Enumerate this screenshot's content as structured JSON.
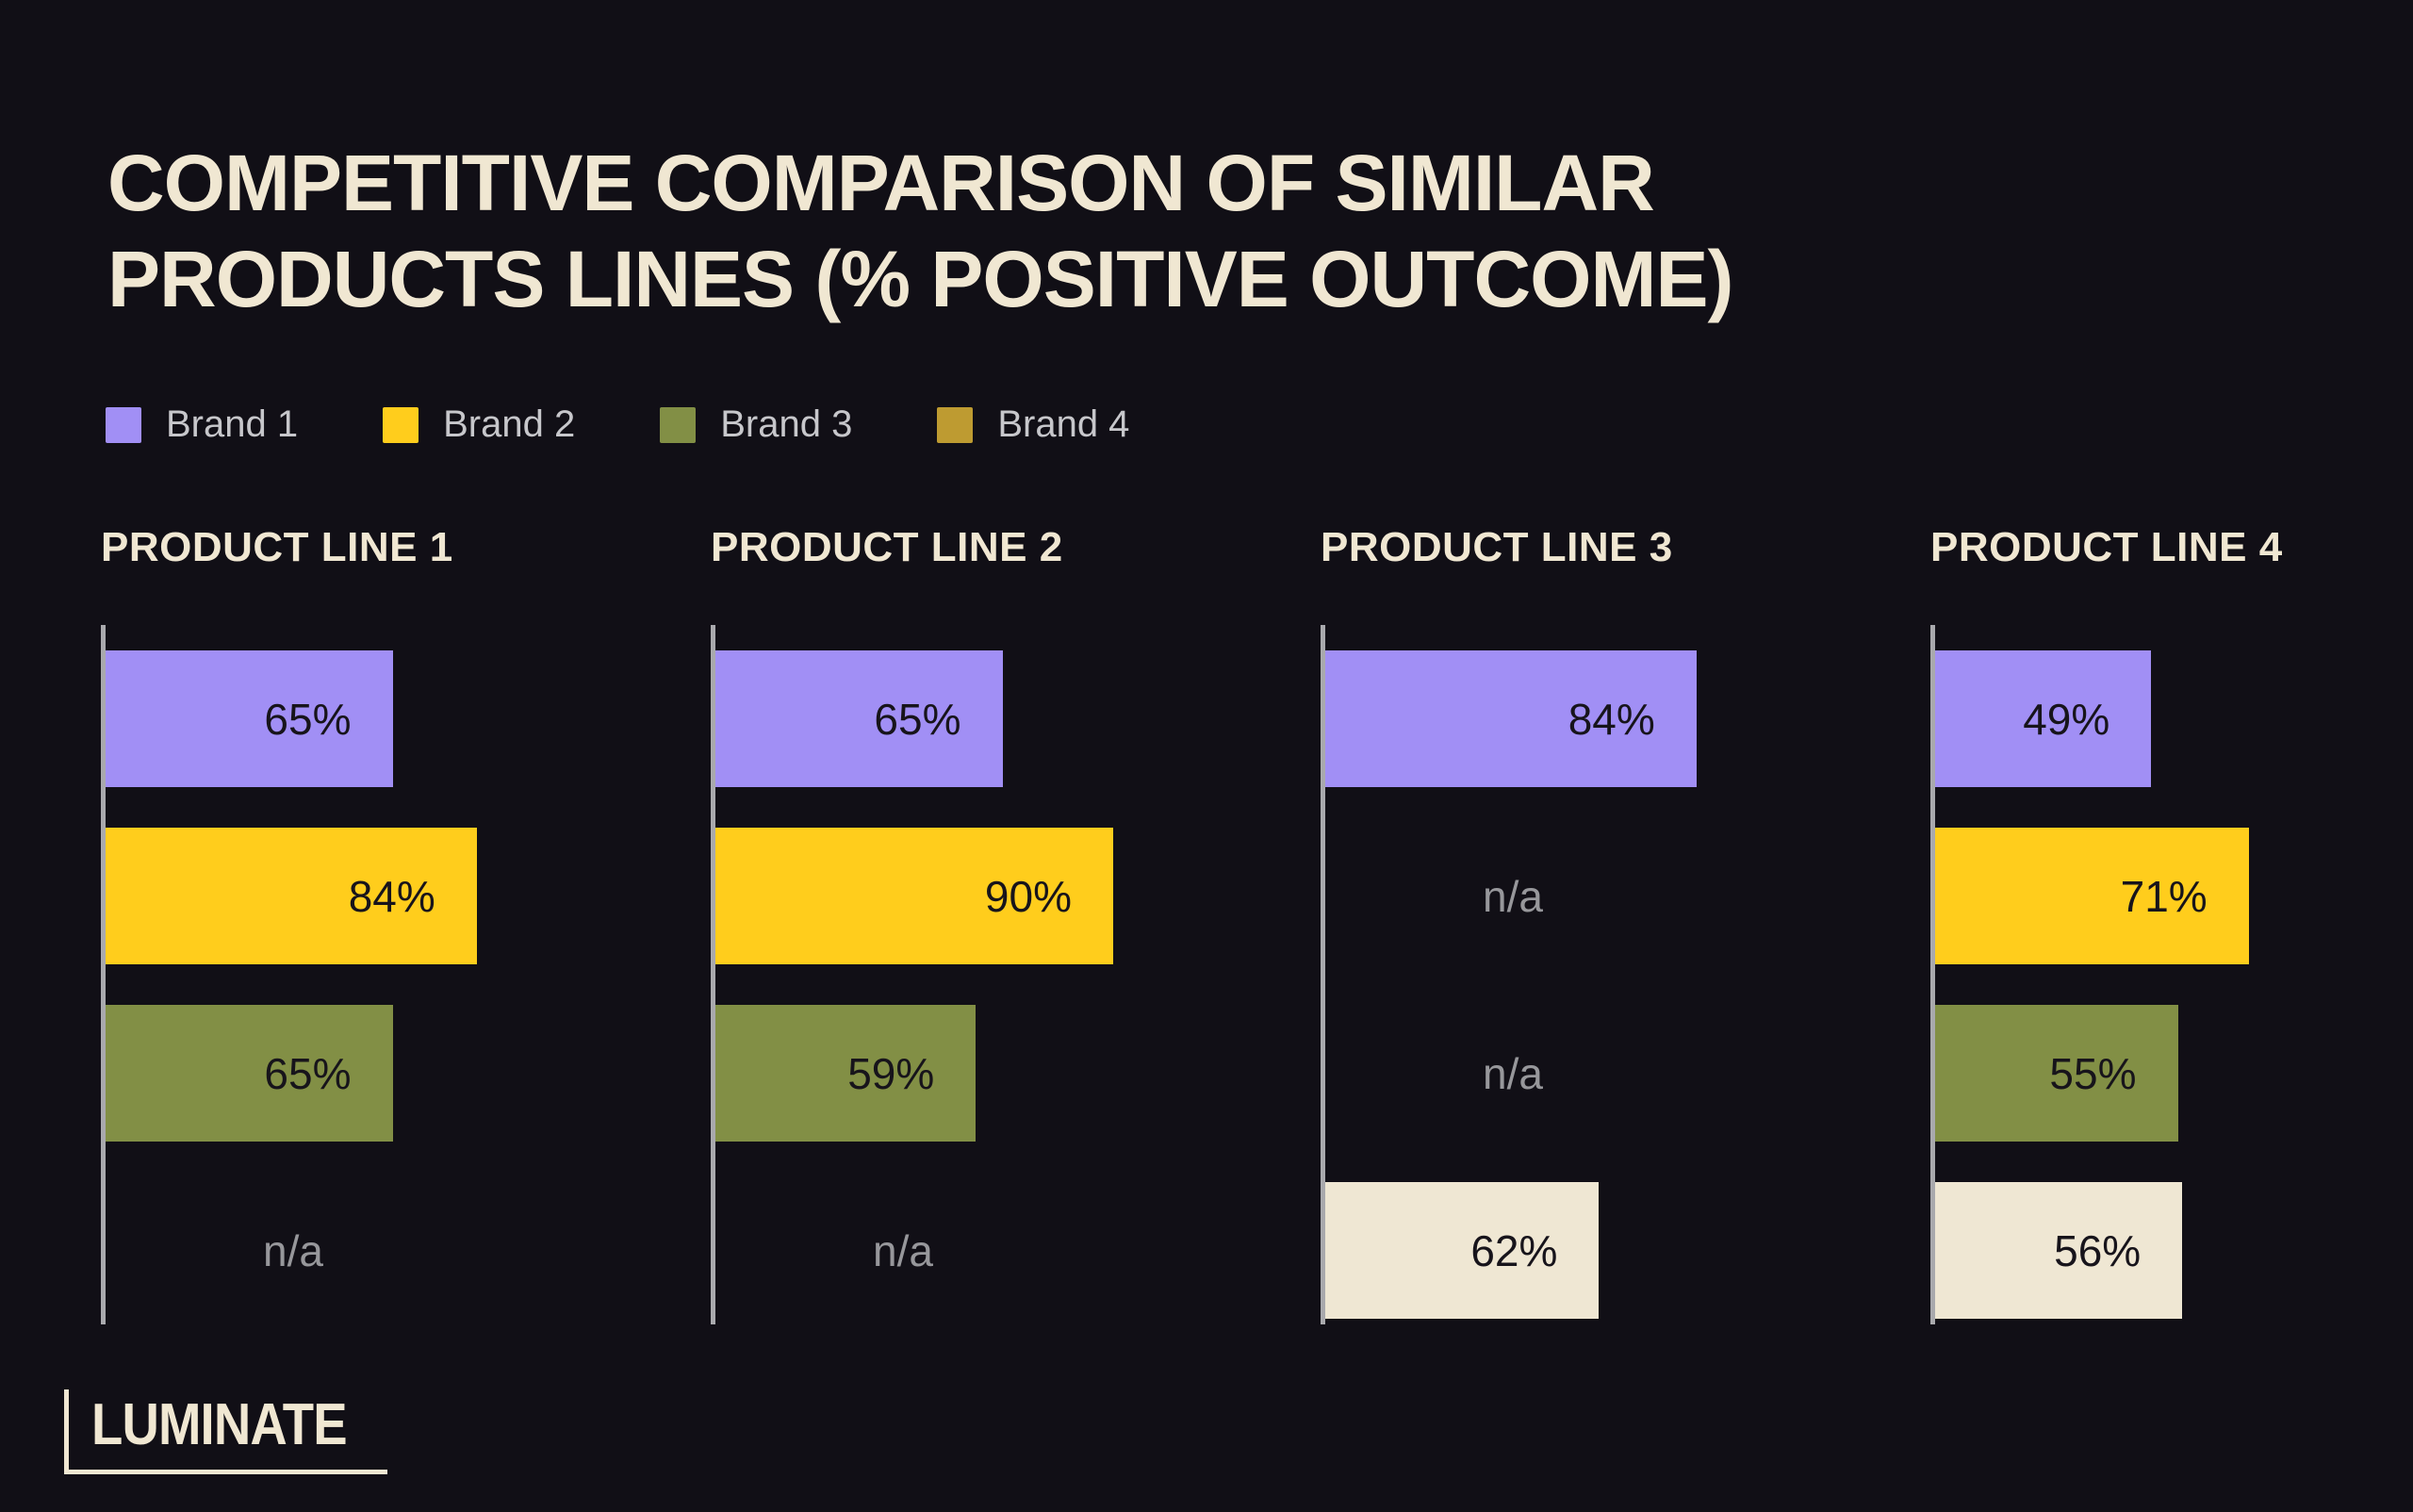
{
  "page": {
    "background": "#110F16",
    "title_line1": "COMPETITIVE COMPARISON OF SIMILAR",
    "title_line2": "PRODUCTS LINES (% POSITIVE OUTCOME)",
    "logo_text": "LUMINATE"
  },
  "colors": {
    "brand1": "#A18FF5",
    "brand2": "#FFCD1C",
    "brand3": "#828F45",
    "brand4_legend": "#BE9B31",
    "brand4_bar": "#EFE7D3",
    "axis": "#A9A9AD",
    "bar_value_text": "#17141B",
    "na_text": "#97979B",
    "heading_text": "#F0E7D2",
    "legend_text": "#C7C7CB"
  },
  "legend": {
    "items": [
      {
        "label": "Brand 1",
        "color": "#A18FF5"
      },
      {
        "label": "Brand 2",
        "color": "#FFCD1C"
      },
      {
        "label": "Brand 3",
        "color": "#828F45"
      },
      {
        "label": "Brand 4",
        "color": "#BE9B31"
      }
    ]
  },
  "chart_data": {
    "type": "bar",
    "orientation": "horizontal",
    "title": "COMPETITIVE COMPARISON OF SIMILAR PRODUCTS LINES (% POSITIVE OUTCOME)",
    "value_unit": "%",
    "xlim": [
      0,
      100
    ],
    "grid": false,
    "legend_position": "top-left",
    "categories": [
      "PRODUCT LINE 1",
      "PRODUCT LINE 2",
      "PRODUCT LINE 3",
      "PRODUCT LINE 4"
    ],
    "series": [
      {
        "name": "Brand 1",
        "values": [
          65,
          65,
          84,
          49
        ]
      },
      {
        "name": "Brand 2",
        "values": [
          84,
          90,
          null,
          71
        ]
      },
      {
        "name": "Brand 3",
        "values": [
          65,
          59,
          null,
          55
        ]
      },
      {
        "name": "Brand 4",
        "values": [
          null,
          null,
          62,
          56
        ]
      }
    ],
    "missing_label": "n/a"
  },
  "panels": [
    {
      "heading": "PRODUCT LINE 1",
      "bars": [
        {
          "brand": "Brand 1",
          "value": 65,
          "display": "65%",
          "color": "#A18FF5"
        },
        {
          "brand": "Brand 2",
          "value": 84,
          "display": "84%",
          "color": "#FFCD1C"
        },
        {
          "brand": "Brand 3",
          "value": 65,
          "display": "65%",
          "color": "#828F45"
        },
        {
          "brand": "Brand 4",
          "value": null,
          "display": "n/a",
          "color": null
        }
      ]
    },
    {
      "heading": "PRODUCT LINE 2",
      "bars": [
        {
          "brand": "Brand 1",
          "value": 65,
          "display": "65%",
          "color": "#A18FF5"
        },
        {
          "brand": "Brand 2",
          "value": 90,
          "display": "90%",
          "color": "#FFCD1C"
        },
        {
          "brand": "Brand 3",
          "value": 59,
          "display": "59%",
          "color": "#828F45"
        },
        {
          "brand": "Brand 4",
          "value": null,
          "display": "n/a",
          "color": null
        }
      ]
    },
    {
      "heading": "PRODUCT LINE 3",
      "bars": [
        {
          "brand": "Brand 1",
          "value": 84,
          "display": "84%",
          "color": "#A18FF5"
        },
        {
          "brand": "Brand 2",
          "value": null,
          "display": "n/a",
          "color": null
        },
        {
          "brand": "Brand 3",
          "value": null,
          "display": "n/a",
          "color": null
        },
        {
          "brand": "Brand 4",
          "value": 62,
          "display": "62%",
          "color": "#EFE7D3"
        }
      ]
    },
    {
      "heading": "PRODUCT LINE 4",
      "bars": [
        {
          "brand": "Brand 1",
          "value": 49,
          "display": "49%",
          "color": "#A18FF5"
        },
        {
          "brand": "Brand 2",
          "value": 71,
          "display": "71%",
          "color": "#FFCD1C"
        },
        {
          "brand": "Brand 3",
          "value": 55,
          "display": "55%",
          "color": "#828F45"
        },
        {
          "brand": "Brand 4",
          "value": 56,
          "display": "56%",
          "color": "#EFE7D3"
        }
      ]
    }
  ]
}
